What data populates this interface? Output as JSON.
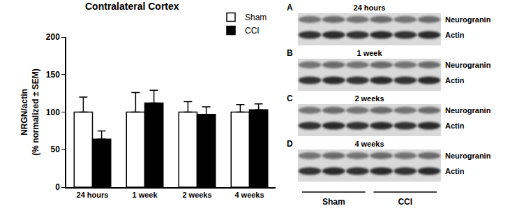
{
  "chart_data": {
    "type": "bar",
    "title": "Contralateral Cortex",
    "y_label": "NRGN/actin\n(% normalized ± SEM)",
    "categories": [
      "24 hours",
      "1 week",
      "2 weeks",
      "4 weeks"
    ],
    "series": [
      {
        "name": "Sham",
        "color": "#ffffff",
        "values": [
          100,
          100,
          100,
          100
        ],
        "error": [
          20,
          26,
          14,
          10
        ]
      },
      {
        "name": "CCI",
        "color": "#000000",
        "values": [
          64,
          112,
          97,
          103
        ],
        "error": [
          11,
          17,
          10,
          8
        ]
      }
    ],
    "ylim": [
      0,
      200
    ],
    "yticks": [
      0,
      50,
      100,
      150,
      200
    ],
    "grid": false,
    "legend": "upper right"
  },
  "blots": {
    "panels": [
      {
        "letter": "A",
        "time": "24 hours",
        "bands": [
          "Neurogranin",
          "Actin"
        ]
      },
      {
        "letter": "B",
        "time": "1 week",
        "bands": [
          "Neurogranin",
          "Actin"
        ]
      },
      {
        "letter": "C",
        "time": "2 weeks",
        "bands": [
          "Neurogranin",
          "Actin"
        ]
      },
      {
        "letter": "D",
        "time": "4 weeks",
        "bands": [
          "Neurogranin",
          "Actin"
        ]
      }
    ],
    "groups": [
      "Sham",
      "CCI"
    ]
  }
}
